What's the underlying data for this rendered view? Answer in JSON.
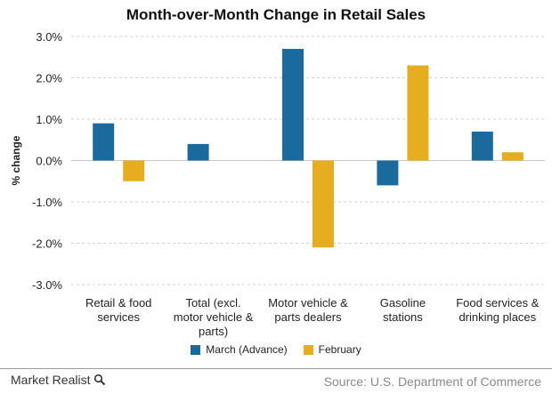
{
  "chart_data": {
    "type": "bar",
    "title": "Month-over-Month Change in Retail Sales",
    "ylabel": "% change",
    "xlabel": "",
    "ylim": [
      -3.0,
      3.0
    ],
    "yticks": [
      3.0,
      2.0,
      1.0,
      0.0,
      -1.0,
      -2.0,
      -3.0
    ],
    "ytick_labels": [
      "3.0%",
      "2.0%",
      "1.0%",
      "0.0%",
      "-1.0%",
      "-2.0%",
      "-3.0%"
    ],
    "grid": true,
    "legend_position": "bottom",
    "categories": [
      [
        "Retail & food",
        "services"
      ],
      [
        "Total (excl.",
        "motor vehicle &",
        "parts)"
      ],
      [
        "Motor vehicle &",
        "parts dealers"
      ],
      [
        "Gasoline",
        "stations"
      ],
      [
        "Food services &",
        "drinking places"
      ]
    ],
    "series": [
      {
        "name": "March (Advance)",
        "color": "#1b6a9e",
        "values": [
          0.9,
          0.4,
          2.7,
          -0.6,
          0.7
        ]
      },
      {
        "name": "February",
        "color": "#e5ad1f",
        "values": [
          -0.5,
          0.0,
          -2.1,
          2.3,
          0.2
        ]
      }
    ]
  },
  "footer": {
    "brand": "Market Realist",
    "source": "Source: U.S. Department of Commerce"
  }
}
